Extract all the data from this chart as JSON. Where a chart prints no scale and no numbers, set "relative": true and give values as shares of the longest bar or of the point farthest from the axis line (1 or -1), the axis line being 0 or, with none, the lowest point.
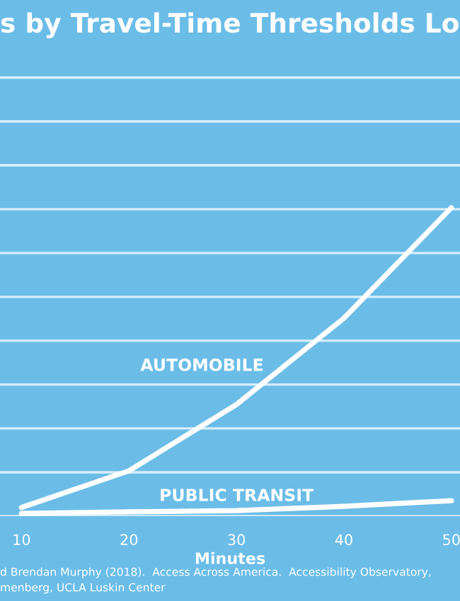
{
  "chart_data": {
    "type": "line",
    "title": "s by Travel-Time Thresholds Lo",
    "xlabel": "Minutes",
    "x": [
      10,
      20,
      30,
      40,
      50
    ],
    "xlim": [
      8,
      50.8
    ],
    "xticks": [
      10,
      20,
      30,
      40,
      50
    ],
    "relative": true,
    "grid": "y",
    "legend": false,
    "marker": "none",
    "line_style": "solid",
    "series": [
      {
        "name": "AUTOMOBILE",
        "color": "#ffffff",
        "values": [
          0.028,
          0.147,
          0.362,
          0.642,
          1
        ]
      },
      {
        "name": "PUBLIC TRANSIT",
        "color": "#ffffff",
        "values": [
          0.009,
          0.014,
          0.018,
          0.032,
          0.05
        ]
      }
    ],
    "annotations": [
      "d Brendan Murphy (2018).  Access Across America.  Accessibility Observatory,",
      "menberg, UCLA Luskin Center"
    ]
  }
}
